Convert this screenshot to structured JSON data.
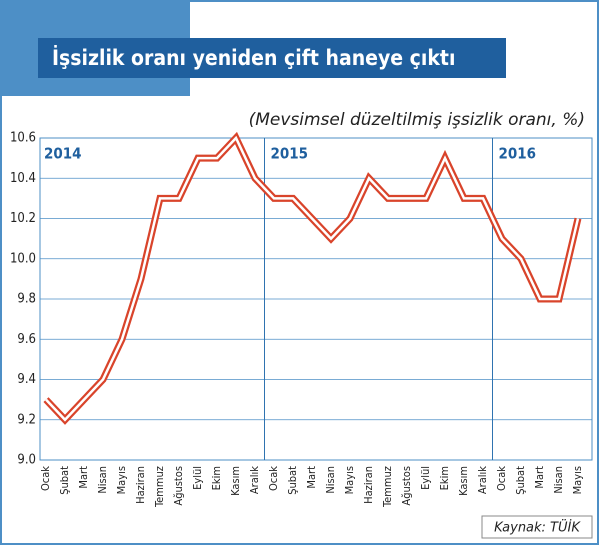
{
  "chart_data": {
    "type": "line",
    "title": "İşsizlik oranı yeniden çift haneye çıktı",
    "subtitle": "(Mevsimsel düzeltilmiş işsizlik oranı, %)",
    "source": "Kaynak: TÜİK",
    "year_labels": [
      "2014",
      "2015",
      "2016"
    ],
    "categories": [
      "Ocak",
      "Şubat",
      "Mart",
      "Nisan",
      "Mayıs",
      "Haziran",
      "Temmuz",
      "Ağustos",
      "Eylül",
      "Ekim",
      "Kasım",
      "Aralık",
      "Ocak",
      "Şubat",
      "Mart",
      "Nisan",
      "Mayıs",
      "Haziran",
      "Temmuz",
      "Ağustos",
      "Eylül",
      "Ekim",
      "Kasım",
      "Aralık",
      "Ocak",
      "Şubat",
      "Mart",
      "Nisan",
      "Mayıs"
    ],
    "series": [
      {
        "color": "#d9442b",
        "values": [
          9.3,
          9.2,
          9.3,
          9.4,
          9.6,
          9.9,
          10.3,
          10.3,
          10.5,
          10.5,
          10.6,
          10.4,
          10.3,
          10.3,
          10.2,
          10.1,
          10.2,
          10.4,
          10.3,
          10.3,
          10.3,
          10.5,
          10.3,
          10.3,
          10.1,
          10.0,
          9.8,
          9.8,
          10.2
        ]
      }
    ],
    "ylim": [
      9.0,
      10.6
    ],
    "yticks": [
      {
        "value": 9.0,
        "label": "9.0"
      },
      9.2,
      9.4,
      9.6,
      9.8,
      {
        "value": 10.0,
        "label": "10.0"
      },
      10.2,
      10.4,
      10.6
    ],
    "grid": true
  }
}
